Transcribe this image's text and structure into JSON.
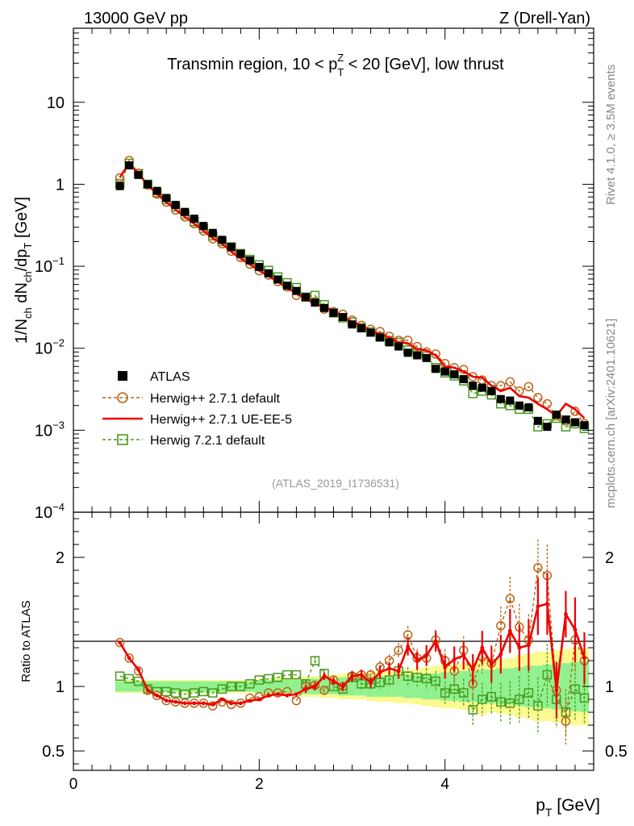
{
  "header": {
    "left": "13000 GeV pp",
    "right": "Z (Drell-Yan)"
  },
  "side_labels": {
    "rivet": "Rivet 4.1.0, ≥ 3.5M events",
    "mcplots": "mcplots.cern.ch [arXiv:2401.10621]"
  },
  "chart_data": [
    {
      "type": "scatter",
      "panel": "main",
      "title": "Transmin region, 10 < p_T^Z < 20 [GeV], low thrust",
      "title_text": {
        "prefix": "Transmin region, 10 < p",
        "sub": "T",
        "sup": "Z",
        "suffix": " < 20 [GeV], low thrust"
      },
      "ylabel": "1/N_ch dN_ch/dp_T [GeV]",
      "ylabel_parts": {
        "a": "1/N",
        "a_sub": "ch",
        "b": " dN",
        "b_sub": "ch",
        "c": "/dp",
        "c_sub": "T",
        "d": " [GeV]"
      },
      "yscale": "log",
      "ylim": [
        0.0001,
        80
      ],
      "xlim": [
        0,
        5.6
      ],
      "y_ticks": [
        {
          "value": 10,
          "base": "10",
          "exp": ""
        },
        {
          "value": 1,
          "base": "1",
          "exp": ""
        },
        {
          "value": 0.1,
          "base": "10",
          "exp": "−1"
        },
        {
          "value": 0.01,
          "base": "10",
          "exp": "−2"
        },
        {
          "value": 0.001,
          "base": "10",
          "exp": "−3"
        },
        {
          "value": 0.0001,
          "base": "10",
          "exp": "−4"
        }
      ],
      "watermark": "(ATLAS_2019_I1736531)",
      "legend_position": "bottom-left",
      "x": [
        0.5,
        0.6,
        0.7,
        0.8,
        0.9,
        1.0,
        1.1,
        1.2,
        1.3,
        1.4,
        1.5,
        1.6,
        1.7,
        1.8,
        1.9,
        2.0,
        2.1,
        2.2,
        2.3,
        2.4,
        2.5,
        2.6,
        2.7,
        2.8,
        2.9,
        3.0,
        3.1,
        3.2,
        3.3,
        3.4,
        3.5,
        3.6,
        3.7,
        3.8,
        3.9,
        4.0,
        4.1,
        4.2,
        4.3,
        4.4,
        4.5,
        4.6,
        4.7,
        4.8,
        4.9,
        5.0,
        5.1,
        5.2,
        5.3,
        5.4,
        5.5
      ],
      "series": [
        {
          "name": "ATLAS",
          "style": "data",
          "color": "#000000",
          "values": [
            0.95,
            1.7,
            1.3,
            1.0,
            0.83,
            0.68,
            0.56,
            0.46,
            0.38,
            0.31,
            0.255,
            0.21,
            0.172,
            0.142,
            0.118,
            0.098,
            0.082,
            0.069,
            0.058,
            0.05,
            0.042,
            0.036,
            0.031,
            0.027,
            0.024,
            0.0195,
            0.0175,
            0.0155,
            0.0135,
            0.0118,
            0.0105,
            0.0088,
            0.0082,
            0.0076,
            0.0056,
            0.0052,
            0.0048,
            0.0042,
            0.0035,
            0.0033,
            0.003,
            0.0024,
            0.0023,
            0.002,
            0.0019,
            0.0013,
            0.0011,
            0.00155,
            0.00135,
            0.00125,
            0.00115
          ]
        },
        {
          "name": "Herwig++ 2.7.1 default",
          "style": "circle-dashed",
          "color": "#b8651a",
          "values": [
            1.2,
            1.95,
            1.36,
            0.98,
            0.76,
            0.605,
            0.485,
            0.4,
            0.33,
            0.27,
            0.216,
            0.188,
            0.152,
            0.128,
            0.106,
            0.088,
            0.078,
            0.065,
            0.056,
            0.044,
            0.042,
            0.037,
            0.03,
            0.028,
            0.026,
            0.022,
            0.019,
            0.017,
            0.016,
            0.014,
            0.0125,
            0.0125,
            0.0105,
            0.009,
            0.0085,
            0.0065,
            0.0058,
            0.0055,
            0.0045,
            0.0041,
            0.0035,
            0.0035,
            0.0039,
            0.003,
            0.0034,
            0.0025,
            0.0021,
            0.0015,
            0.0013,
            0.0017,
            0.0012
          ]
        },
        {
          "name": "Herwig++ 2.7.1 UE-EE-5",
          "style": "line",
          "color": "#ee0000",
          "values": [
            1.22,
            1.8,
            1.36,
            0.98,
            0.76,
            0.605,
            0.49,
            0.4,
            0.33,
            0.27,
            0.22,
            0.188,
            0.15,
            0.124,
            0.105,
            0.088,
            0.076,
            0.065,
            0.054,
            0.047,
            0.041,
            0.034,
            0.033,
            0.028,
            0.024,
            0.021,
            0.019,
            0.016,
            0.015,
            0.0135,
            0.0118,
            0.0115,
            0.0098,
            0.0094,
            0.0082,
            0.006,
            0.0058,
            0.0052,
            0.0045,
            0.0044,
            0.0035,
            0.003,
            0.0033,
            0.0026,
            0.0025,
            0.0021,
            0.0018,
            0.0015,
            0.0021,
            0.0018,
            0.0014
          ]
        },
        {
          "name": "Herwig 7.2.1 default",
          "style": "square-dashed",
          "color": "#4a9a1e",
          "values": [
            1.02,
            1.8,
            1.35,
            1.0,
            0.79,
            0.65,
            0.53,
            0.43,
            0.35,
            0.29,
            0.235,
            0.2,
            0.172,
            0.143,
            0.121,
            0.104,
            0.089,
            0.074,
            0.063,
            0.055,
            0.042,
            0.044,
            0.034,
            0.027,
            0.0235,
            0.0208,
            0.0178,
            0.0158,
            0.0138,
            0.0124,
            0.0118,
            0.0095,
            0.0088,
            0.008,
            0.0058,
            0.005,
            0.0046,
            0.004,
            0.0028,
            0.003,
            0.0027,
            0.0021,
            0.002,
            0.0018,
            0.0018,
            0.0011,
            0.0012,
            0.0014,
            0.0011,
            0.0012,
            0.00105
          ]
        }
      ]
    },
    {
      "type": "line",
      "panel": "ratio",
      "ylabel": "Ratio to ATLAS",
      "xlabel": "p_T [GeV]",
      "xlabel_parts": {
        "a": "p",
        "sub": "T",
        "b": " [GeV]"
      },
      "ylim": [
        0.35,
        2.35
      ],
      "xlim": [
        0,
        5.6
      ],
      "y_ticks": [
        "0.5",
        "1",
        "2"
      ],
      "x_ticks": [
        "0",
        "2",
        "4"
      ],
      "x": [
        0.5,
        0.6,
        0.7,
        0.8,
        0.9,
        1.0,
        1.1,
        1.2,
        1.3,
        1.4,
        1.5,
        1.6,
        1.7,
        1.8,
        1.9,
        2.0,
        2.1,
        2.2,
        2.3,
        2.4,
        2.5,
        2.6,
        2.7,
        2.8,
        2.9,
        3.0,
        3.1,
        3.2,
        3.3,
        3.4,
        3.5,
        3.6,
        3.7,
        3.8,
        3.9,
        4.0,
        4.1,
        4.2,
        4.3,
        4.4,
        4.5,
        4.6,
        4.7,
        4.8,
        4.9,
        5.0,
        5.1,
        5.2,
        5.3,
        5.4,
        5.5
      ],
      "band_inner": [
        0.04,
        0.04,
        0.04,
        0.04,
        0.04,
        0.04,
        0.04,
        0.04,
        0.04,
        0.04,
        0.04,
        0.04,
        0.04,
        0.04,
        0.04,
        0.05,
        0.05,
        0.05,
        0.05,
        0.05,
        0.06,
        0.06,
        0.06,
        0.06,
        0.07,
        0.07,
        0.07,
        0.08,
        0.08,
        0.08,
        0.08,
        0.09,
        0.09,
        0.1,
        0.1,
        0.11,
        0.11,
        0.12,
        0.12,
        0.13,
        0.13,
        0.14,
        0.14,
        0.15,
        0.16,
        0.16,
        0.17,
        0.18,
        0.18,
        0.19,
        0.2
      ],
      "band_outer": [
        0.05,
        0.05,
        0.05,
        0.05,
        0.05,
        0.05,
        0.05,
        0.05,
        0.05,
        0.05,
        0.05,
        0.05,
        0.05,
        0.05,
        0.05,
        0.06,
        0.06,
        0.07,
        0.07,
        0.07,
        0.08,
        0.08,
        0.09,
        0.09,
        0.1,
        0.1,
        0.1,
        0.11,
        0.12,
        0.12,
        0.13,
        0.13,
        0.14,
        0.15,
        0.16,
        0.17,
        0.17,
        0.18,
        0.19,
        0.22,
        0.2,
        0.21,
        0.22,
        0.24,
        0.25,
        0.27,
        0.27,
        0.28,
        0.29,
        0.3,
        0.3
      ],
      "series": [
        {
          "name": "Herwig++ 2.7.1 default",
          "style": "circle-dashed",
          "color": "#b8651a",
          "values": [
            1.34,
            1.22,
            1.12,
            0.97,
            0.93,
            0.89,
            0.88,
            0.87,
            0.87,
            0.87,
            0.85,
            0.88,
            0.86,
            0.87,
            0.91,
            0.92,
            0.95,
            0.95,
            0.96,
            0.89,
            1.0,
            1.01,
            0.97,
            1.05,
            1.0,
            1.08,
            1.09,
            1.09,
            1.15,
            1.2,
            1.28,
            1.4,
            1.22,
            1.22,
            1.36,
            1.2,
            1.12,
            1.28,
            1.02,
            1.23,
            1.18,
            1.47,
            1.68,
            1.46,
            1.36,
            1.92,
            1.86,
            0.97,
            0.73,
            1.36,
            1.2
          ],
          "errors": [
            0.02,
            0.02,
            0.02,
            0.02,
            0.02,
            0.02,
            0.02,
            0.02,
            0.02,
            0.02,
            0.02,
            0.02,
            0.02,
            0.02,
            0.02,
            0.02,
            0.02,
            0.02,
            0.02,
            0.02,
            0.03,
            0.03,
            0.03,
            0.03,
            0.03,
            0.04,
            0.04,
            0.04,
            0.05,
            0.05,
            0.06,
            0.07,
            0.07,
            0.08,
            0.08,
            0.09,
            0.1,
            0.11,
            0.12,
            0.13,
            0.14,
            0.15,
            0.17,
            0.18,
            0.2,
            0.22,
            0.24,
            0.22,
            0.18,
            0.25,
            0.2
          ]
        },
        {
          "name": "Herwig++ 2.7.1 UE-EE-5",
          "style": "line",
          "color": "#ee0000",
          "values": [
            1.34,
            1.22,
            1.13,
            0.97,
            0.93,
            0.89,
            0.88,
            0.87,
            0.87,
            0.87,
            0.86,
            0.9,
            0.87,
            0.87,
            0.89,
            0.9,
            0.93,
            0.94,
            0.93,
            0.94,
            0.98,
            1.0,
            1.08,
            1.04,
            1.0,
            1.08,
            1.09,
            1.03,
            1.11,
            1.14,
            1.12,
            1.31,
            1.2,
            1.24,
            1.35,
            1.15,
            1.21,
            1.24,
            1.13,
            1.3,
            1.17,
            1.25,
            1.43,
            1.3,
            1.32,
            1.62,
            1.64,
            0.97,
            1.56,
            1.44,
            1.22
          ],
          "errors": [
            0.02,
            0.02,
            0.02,
            0.02,
            0.02,
            0.02,
            0.02,
            0.02,
            0.02,
            0.02,
            0.02,
            0.02,
            0.02,
            0.02,
            0.02,
            0.02,
            0.02,
            0.02,
            0.02,
            0.02,
            0.03,
            0.03,
            0.03,
            0.03,
            0.03,
            0.04,
            0.04,
            0.04,
            0.05,
            0.05,
            0.06,
            0.07,
            0.07,
            0.08,
            0.08,
            0.09,
            0.1,
            0.11,
            0.12,
            0.13,
            0.14,
            0.15,
            0.17,
            0.18,
            0.2,
            0.22,
            0.24,
            0.22,
            0.18,
            0.25,
            0.2
          ]
        },
        {
          "name": "Herwig 7.2.1 default",
          "style": "square-dashed",
          "color": "#4a9a1e",
          "values": [
            1.08,
            1.06,
            1.04,
            0.98,
            0.96,
            0.96,
            0.95,
            0.94,
            0.95,
            0.96,
            0.95,
            0.98,
            1.0,
            1.0,
            1.02,
            1.05,
            1.06,
            1.07,
            1.09,
            1.09,
            1.02,
            1.2,
            1.1,
            1.0,
            0.98,
            1.07,
            1.02,
            1.02,
            1.03,
            1.05,
            1.12,
            1.08,
            1.07,
            1.06,
            1.04,
            0.95,
            0.98,
            0.95,
            0.82,
            0.9,
            0.92,
            0.88,
            0.87,
            0.9,
            0.95,
            0.85,
            1.09,
            0.9,
            0.8,
            0.98,
            0.91
          ],
          "errors": [
            0.02,
            0.02,
            0.02,
            0.02,
            0.02,
            0.02,
            0.02,
            0.02,
            0.02,
            0.02,
            0.02,
            0.02,
            0.02,
            0.02,
            0.02,
            0.02,
            0.02,
            0.02,
            0.02,
            0.02,
            0.03,
            0.03,
            0.03,
            0.03,
            0.03,
            0.04,
            0.04,
            0.04,
            0.05,
            0.05,
            0.06,
            0.07,
            0.07,
            0.08,
            0.08,
            0.09,
            0.1,
            0.11,
            0.12,
            0.13,
            0.14,
            0.15,
            0.17,
            0.18,
            0.2,
            0.22,
            0.24,
            0.22,
            0.18,
            0.25,
            0.2
          ]
        }
      ]
    }
  ]
}
